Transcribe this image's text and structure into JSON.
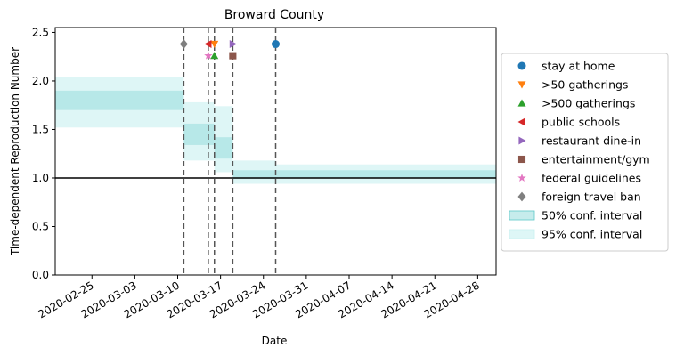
{
  "chart_data": {
    "type": "line",
    "title": "Broward County",
    "xlabel": "Date",
    "ylabel": "Time-dependent Reproduction Number",
    "xlim": [
      "2020-02-19",
      "2020-05-01"
    ],
    "ylim": [
      0,
      2.55
    ],
    "x_ticks": [
      "2020-02-25",
      "2020-03-03",
      "2020-03-10",
      "2020-03-17",
      "2020-03-24",
      "2020-03-31",
      "2020-04-07",
      "2020-04-14",
      "2020-04-21",
      "2020-04-28"
    ],
    "y_ticks": [
      "0.0",
      "0.5",
      "1.0",
      "1.5",
      "2.0",
      "2.5"
    ],
    "reference_line": {
      "y": 1.0,
      "color": "#000000"
    },
    "intervals": [
      {
        "start": "2020-02-19",
        "end": "2020-03-11",
        "ci50": [
          1.7,
          1.9
        ],
        "ci95": [
          1.52,
          2.04
        ]
      },
      {
        "start": "2020-03-11",
        "end": "2020-03-16",
        "ci50": [
          1.34,
          1.56
        ],
        "ci95": [
          1.18,
          1.78
        ]
      },
      {
        "start": "2020-03-16",
        "end": "2020-03-19",
        "ci50": [
          1.2,
          1.42
        ],
        "ci95": [
          1.06,
          1.74
        ]
      },
      {
        "start": "2020-03-19",
        "end": "2020-03-26",
        "ci50": [
          0.99,
          1.08
        ],
        "ci95": [
          0.94,
          1.18
        ]
      },
      {
        "start": "2020-03-26",
        "end": "2020-05-01",
        "ci50": [
          1.0,
          1.08
        ],
        "ci95": [
          0.94,
          1.14
        ]
      }
    ],
    "interventions": [
      {
        "name": "stay at home",
        "date": "2020-03-26",
        "y": 2.38,
        "marker": "circle",
        "color": "#1f77b4"
      },
      {
        "name": ">50 gatherings",
        "date": "2020-03-16",
        "y": 2.38,
        "marker": "triangle-down",
        "color": "#ff7f0e"
      },
      {
        "name": ">500 gatherings",
        "date": "2020-03-16",
        "y": 2.26,
        "marker": "triangle-up",
        "color": "#2ca02c"
      },
      {
        "name": "public schools",
        "date": "2020-03-15",
        "y": 2.38,
        "marker": "triangle-left",
        "color": "#d62728"
      },
      {
        "name": "restaurant dine-in",
        "date": "2020-03-19",
        "y": 2.38,
        "marker": "triangle-right",
        "color": "#9467bd"
      },
      {
        "name": "entertainment/gym",
        "date": "2020-03-19",
        "y": 2.26,
        "marker": "square",
        "color": "#8c564b"
      },
      {
        "name": "federal guidelines",
        "date": "2020-03-15",
        "y": 2.26,
        "marker": "star",
        "color": "#e377c2"
      },
      {
        "name": "foreign travel ban",
        "date": "2020-03-11",
        "y": 2.38,
        "marker": "diamond",
        "color": "#7f7f7f"
      }
    ],
    "vlines": [
      "2020-03-11",
      "2020-03-15",
      "2020-03-16",
      "2020-03-19",
      "2020-03-26"
    ],
    "ci50_color": "#5cc8c8",
    "ci95_color": "#c8f0f0",
    "legend": {
      "position": "center-right",
      "items": [
        {
          "label": "stay at home",
          "marker": "circle",
          "color": "#1f77b4"
        },
        {
          "label": ">50 gatherings",
          "marker": "triangle-down",
          "color": "#ff7f0e"
        },
        {
          "label": ">500 gatherings",
          "marker": "triangle-up",
          "color": "#2ca02c"
        },
        {
          "label": "public schools",
          "marker": "triangle-left",
          "color": "#d62728"
        },
        {
          "label": "restaurant dine-in",
          "marker": "triangle-right",
          "color": "#9467bd"
        },
        {
          "label": "entertainment/gym",
          "marker": "square",
          "color": "#8c564b"
        },
        {
          "label": "federal guidelines",
          "marker": "star",
          "color": "#e377c2"
        },
        {
          "label": "foreign travel ban",
          "marker": "diamond",
          "color": "#7f7f7f"
        },
        {
          "label": "50% conf. interval",
          "marker": "patch-50"
        },
        {
          "label": "95% conf. interval",
          "marker": "patch-95"
        }
      ]
    }
  }
}
